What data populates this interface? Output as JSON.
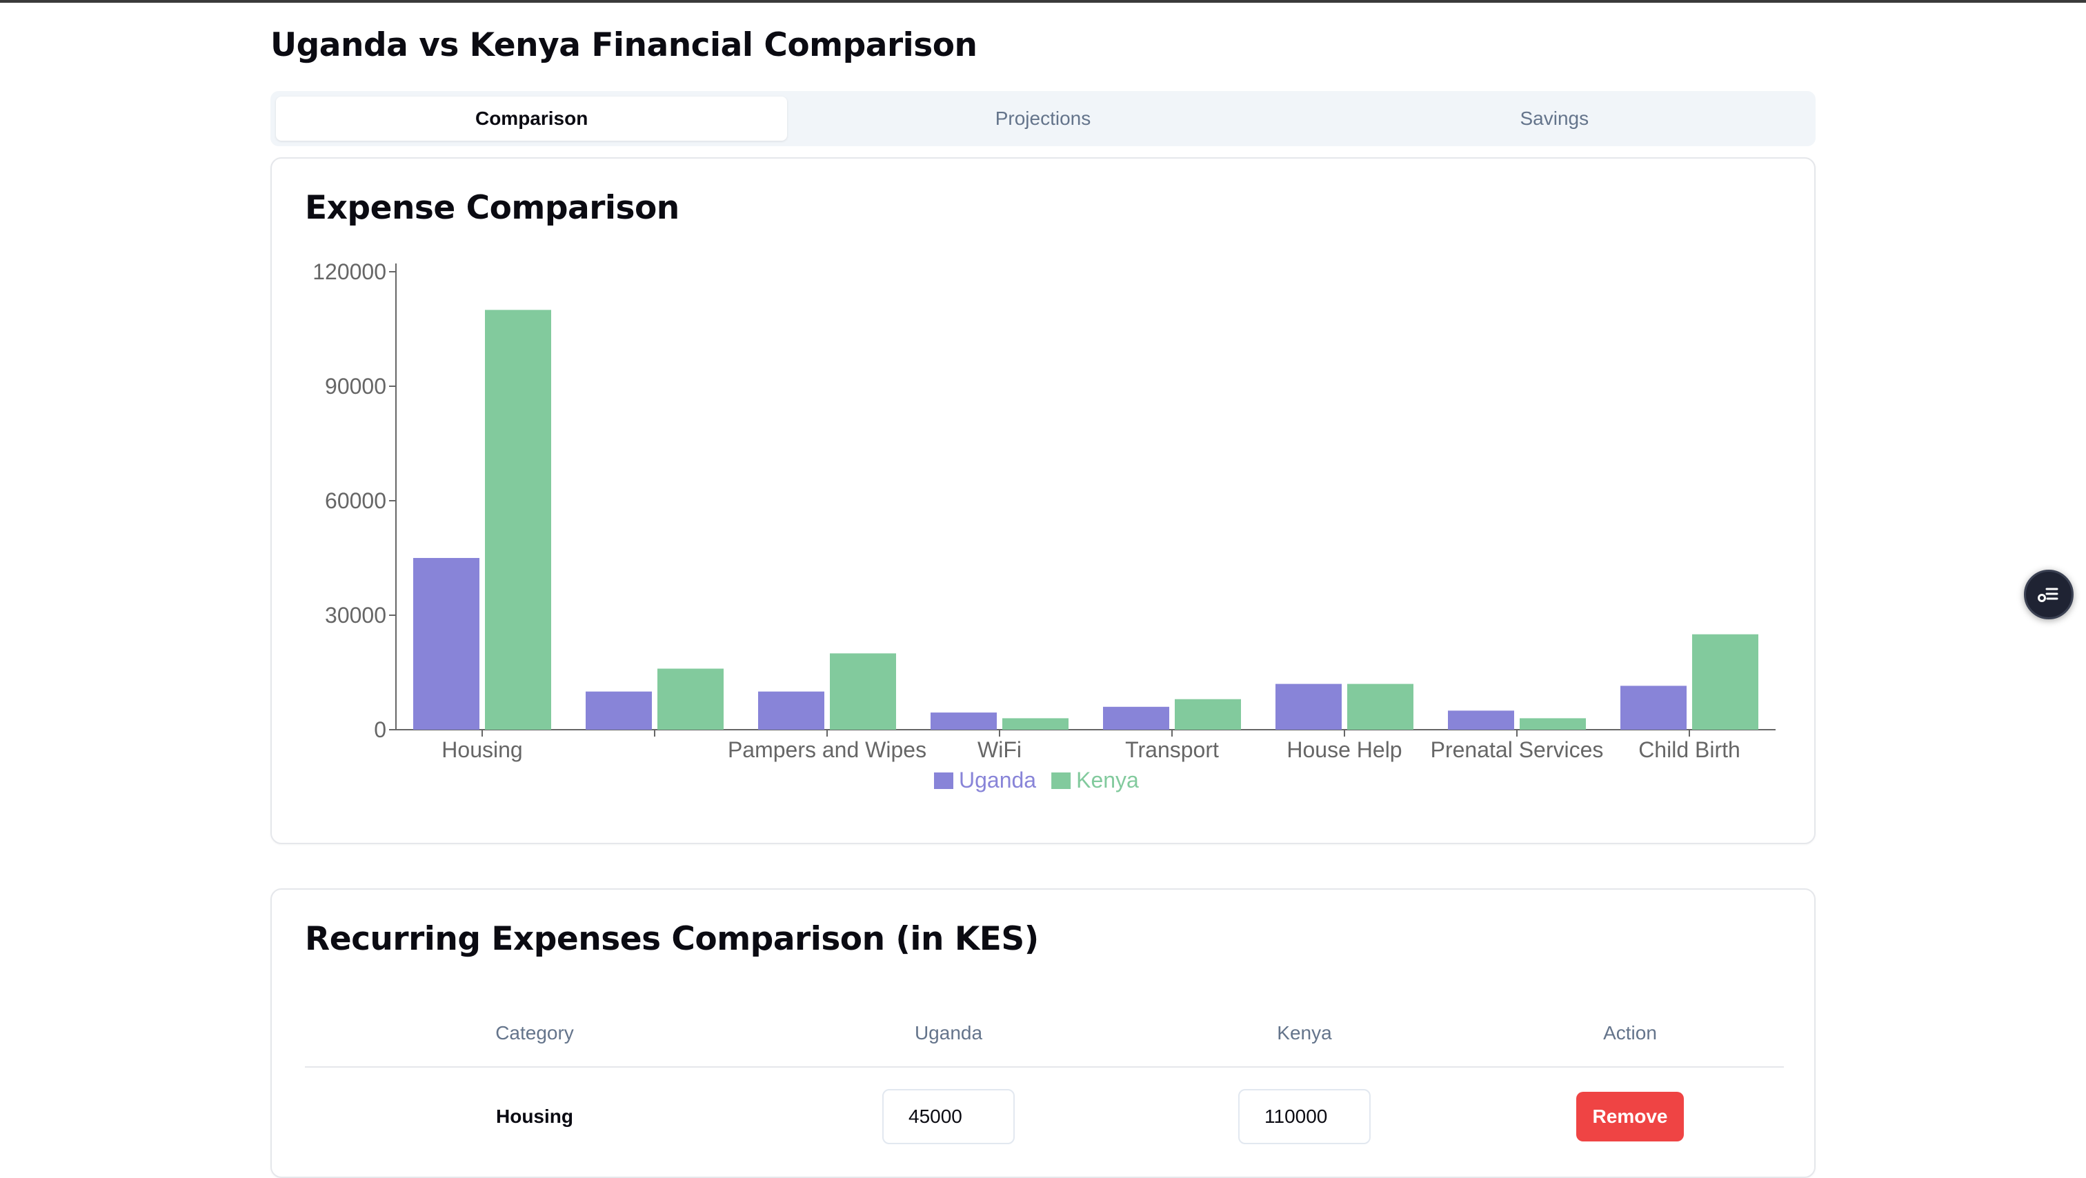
{
  "page": {
    "title": "Uganda vs Kenya Financial Comparison"
  },
  "tabs": [
    {
      "label": "Comparison",
      "active": true
    },
    {
      "label": "Projections",
      "active": false
    },
    {
      "label": "Savings",
      "active": false
    }
  ],
  "chart_card": {
    "title": "Expense Comparison"
  },
  "chart_data": {
    "type": "bar",
    "categories": [
      "Housing",
      "",
      "Pampers and Wipes",
      "WiFi",
      "Transport",
      "House Help",
      "Prenatal Services",
      "Child Birth"
    ],
    "series": [
      {
        "name": "Uganda",
        "color": "#8884d8",
        "values": [
          45000,
          10000,
          10000,
          4500,
          6000,
          12000,
          5000,
          11500
        ]
      },
      {
        "name": "Kenya",
        "color": "#82ca9d",
        "values": [
          110000,
          16000,
          20000,
          3000,
          8000,
          12000,
          3000,
          25000
        ]
      }
    ],
    "yticks": [
      0,
      30000,
      60000,
      90000,
      120000
    ],
    "ylim": [
      0,
      120000
    ],
    "grid": false,
    "legend": "bottom-center"
  },
  "table_card": {
    "title": "Recurring Expenses Comparison (in KES)"
  },
  "table": {
    "headers": {
      "category": "Category",
      "uganda": "Uganda",
      "kenya": "Kenya",
      "action": "Action"
    },
    "rows": [
      {
        "category": "Housing",
        "uganda": "45000",
        "kenya": "110000",
        "action": "Remove"
      }
    ]
  },
  "fab": {
    "icon": "filter-list-icon"
  }
}
